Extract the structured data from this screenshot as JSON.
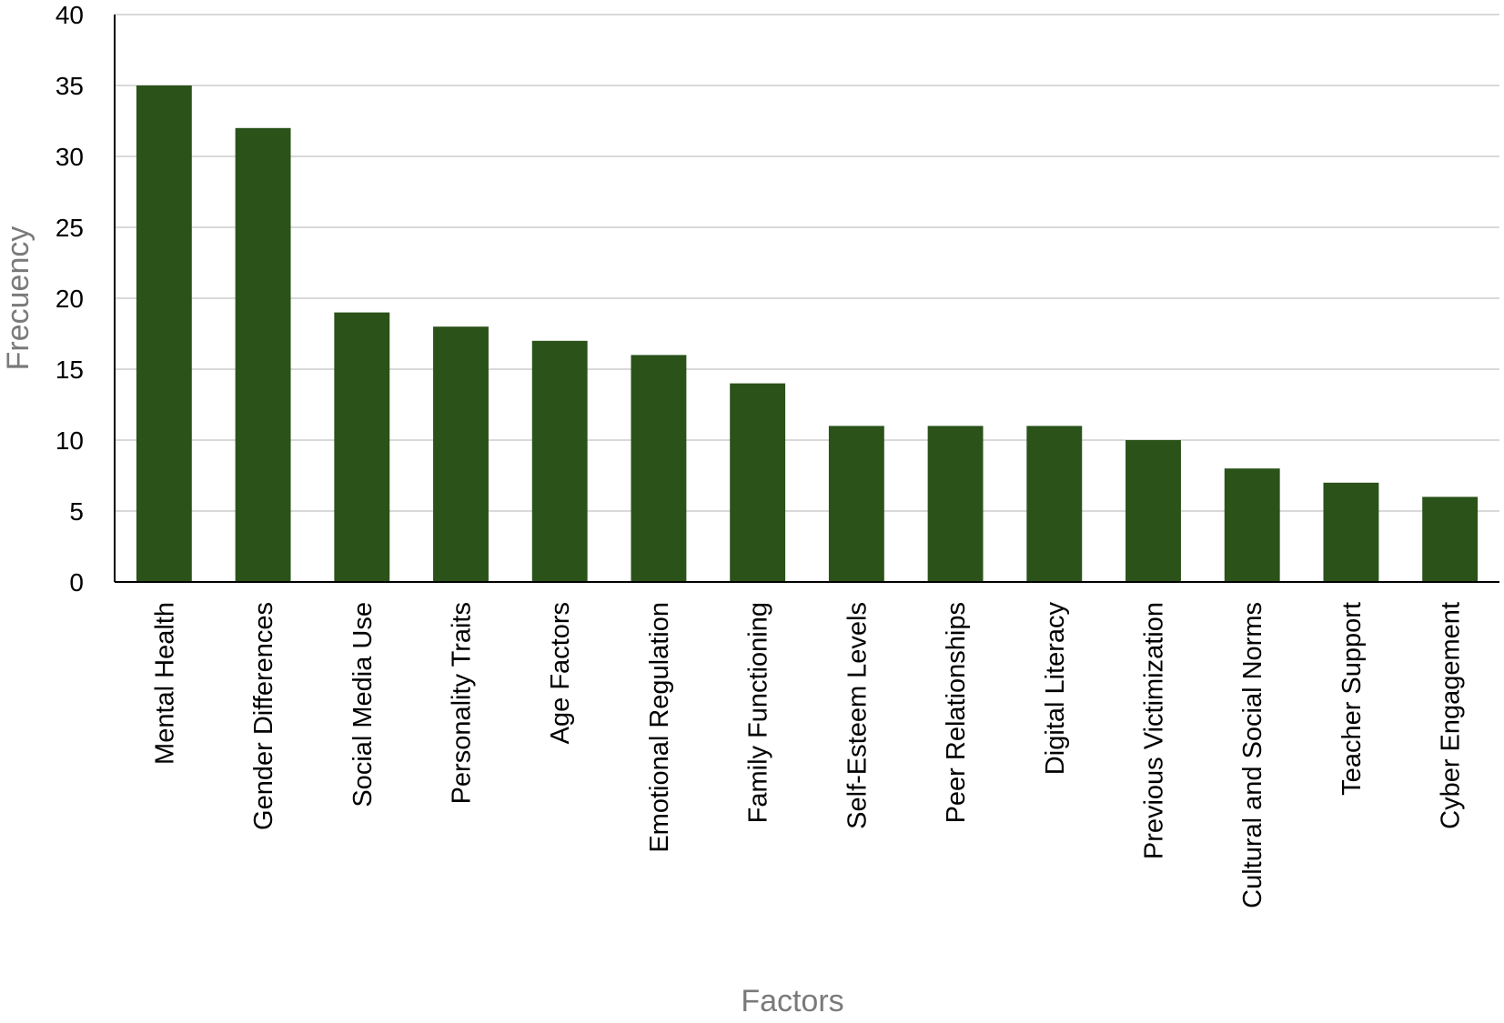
{
  "chart_data": {
    "type": "bar",
    "title": "",
    "xlabel": "Factors",
    "ylabel": "Frecuency",
    "ylim": [
      0,
      40
    ],
    "yticks": [
      0,
      5,
      10,
      15,
      20,
      25,
      30,
      35,
      40
    ],
    "grid": true,
    "legend": "none",
    "bar_color": "#2a5219",
    "grid_color": "#d9d9d9",
    "axis_color": "#000000",
    "categories": [
      "Mental Health",
      "Gender Differences",
      "Social Media Use",
      "Personality Traits",
      "Age Factors",
      "Emotional Regulation",
      "Family Functioning",
      "Self-Esteem Levels",
      "Peer Relationships",
      "Digital Literacy",
      "Previous Victimization",
      "Cultural and Social Norms",
      "Teacher Support",
      "Cyber Engagement"
    ],
    "values": [
      35,
      32,
      19,
      18,
      17,
      16,
      14,
      11,
      11,
      11,
      10,
      8,
      7,
      6
    ]
  }
}
